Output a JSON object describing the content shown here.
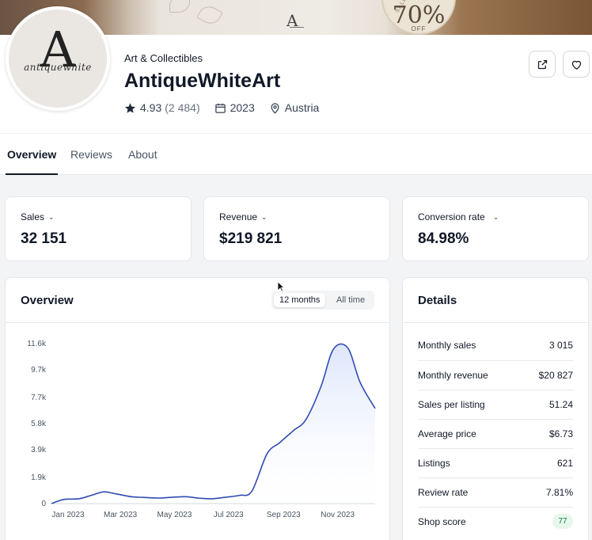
{
  "banner": {
    "sale_percent": "70%",
    "sale_off": "OFF",
    "sale_side": "SALE SALE"
  },
  "shop": {
    "avatar_text": "antiquewhite",
    "avatar_letter": "A",
    "category": "Art & Collectibles",
    "name": "AntiqueWhiteArt",
    "rating": "4.93",
    "reviews_count": "(2 484)",
    "year": "2023",
    "country": "Austria"
  },
  "tabs": [
    {
      "label": "Overview",
      "active": true
    },
    {
      "label": "Reviews",
      "active": false
    },
    {
      "label": "About",
      "active": false
    }
  ],
  "stats": [
    {
      "label": "Sales",
      "value": "32 151"
    },
    {
      "label": "Revenue",
      "value": "$219 821"
    },
    {
      "label": "Conversion rate",
      "value": "84.98%"
    }
  ],
  "overview": {
    "title": "Overview",
    "toggle": [
      {
        "label": "12 months",
        "selected": true
      },
      {
        "label": "All time",
        "selected": false
      }
    ]
  },
  "details": {
    "title": "Details",
    "rows": [
      {
        "label": "Monthly sales",
        "value": "3 015"
      },
      {
        "label": "Monthly revenue",
        "value": "$20 827"
      },
      {
        "label": "Sales per listing",
        "value": "51.24"
      },
      {
        "label": "Average price",
        "value": "$6.73"
      },
      {
        "label": "Listings",
        "value": "621"
      },
      {
        "label": "Review rate",
        "value": "7.81%"
      },
      {
        "label": "Shop score",
        "value": "77"
      }
    ]
  },
  "colors": {
    "line": "#2f4bb3",
    "area_top": "#dbe4fb",
    "score_bg": "#e7f7ec",
    "score_text": "#15803d"
  },
  "chart_data": {
    "type": "area",
    "yticks": [
      "11.6k",
      "9.7k",
      "7.7k",
      "5.8k",
      "3.9k",
      "1.9k",
      "0"
    ],
    "ytick_values": [
      11600,
      9700,
      7700,
      5800,
      3900,
      1900,
      0
    ],
    "xticks": [
      "Jan 2023",
      "Mar 2023",
      "May 2023",
      "Jul 2023",
      "Sep 2023",
      "Nov 2023"
    ],
    "ylim": [
      0,
      11600
    ],
    "x": [
      "2023-01-01",
      "2023-01-15",
      "2023-02-01",
      "2023-02-15",
      "2023-03-01",
      "2023-03-15",
      "2023-04-01",
      "2023-04-15",
      "2023-05-01",
      "2023-05-15",
      "2023-06-01",
      "2023-06-15",
      "2023-07-01",
      "2023-07-15",
      "2023-08-01",
      "2023-08-15",
      "2023-09-01",
      "2023-09-15",
      "2023-10-01",
      "2023-10-15",
      "2023-11-01",
      "2023-11-15",
      "2023-12-01",
      "2023-12-15",
      "2024-01-01"
    ],
    "series": [
      {
        "values": [
          0,
          300,
          350,
          600,
          850,
          700,
          500,
          450,
          400,
          450,
          500,
          400,
          350,
          450,
          600,
          900,
          3600,
          4400,
          5300,
          6100,
          8500,
          11200,
          11300,
          8800,
          6900
        ]
      }
    ]
  }
}
